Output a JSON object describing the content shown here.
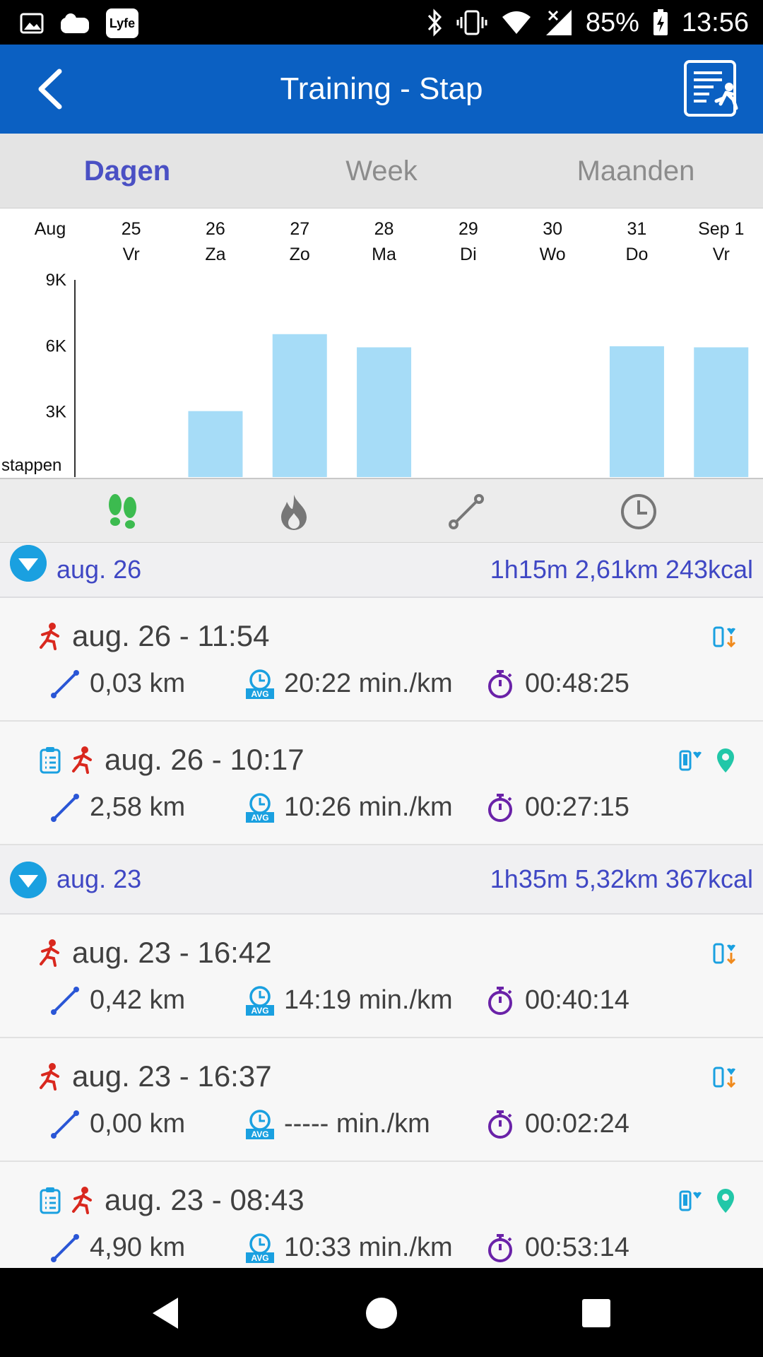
{
  "status_bar": {
    "battery": "85%",
    "time": "13:56",
    "app_badge": "Lyfe"
  },
  "app_bar": {
    "title": "Training - Stap",
    "back_icon": "chevron-left-icon",
    "menu_icon": "report-runner-icon"
  },
  "tabs": [
    {
      "label": "Dagen",
      "active": true
    },
    {
      "label": "Week",
      "active": false
    },
    {
      "label": "Maanden",
      "active": false
    }
  ],
  "chart_data": {
    "type": "bar",
    "month_label": "Aug",
    "categories": [
      "25",
      "26",
      "27",
      "28",
      "29",
      "30",
      "31",
      "Sep 1"
    ],
    "weekday_labels": [
      "Vr",
      "Za",
      "Zo",
      "Ma",
      "Di",
      "Wo",
      "Do",
      "Vr"
    ],
    "values": [
      0,
      3000,
      6500,
      5900,
      0,
      0,
      5950,
      5900
    ],
    "ylabel": "stappen",
    "y_ticks": [
      "3K",
      "6K",
      "9K"
    ],
    "ylim": [
      0,
      9000
    ],
    "bar_color": "#a6dcf7",
    "grid": false
  },
  "metric_switch": [
    {
      "icon": "footsteps-icon",
      "active": true
    },
    {
      "icon": "flame-icon",
      "active": false
    },
    {
      "icon": "route-icon",
      "active": false
    },
    {
      "icon": "clock-icon",
      "active": false
    }
  ],
  "days": [
    {
      "date": "aug. 26",
      "summary": "1h15m 2,61km 243kcal",
      "activities": [
        {
          "title": "aug. 26 - 11:54",
          "distance": "0,03 km",
          "pace": "20:22 min./km",
          "duration": "00:48:25",
          "has_plan": false,
          "source": "device",
          "has_gps": false
        },
        {
          "title": "aug. 26 - 10:17",
          "distance": "2,58 km",
          "pace": "10:26 min./km",
          "duration": "00:27:15",
          "has_plan": true,
          "source": "phone",
          "has_gps": true
        }
      ]
    },
    {
      "date": "aug. 23",
      "summary": "1h35m 5,32km 367kcal",
      "activities": [
        {
          "title": "aug. 23 - 16:42",
          "distance": "0,42 km",
          "pace": "14:19 min./km",
          "duration": "00:40:14",
          "has_plan": false,
          "source": "device",
          "has_gps": false
        },
        {
          "title": "aug. 23 - 16:37",
          "distance": "0,00 km",
          "pace": "----- min./km",
          "duration": "00:02:24",
          "has_plan": false,
          "source": "device",
          "has_gps": false
        },
        {
          "title": "aug. 23 - 08:43",
          "distance": "4,90 km",
          "pace": "10:33 min./km",
          "duration": "00:53:14",
          "has_plan": true,
          "source": "phone",
          "has_gps": true
        }
      ]
    }
  ],
  "labels": {
    "avg_badge": "AVG"
  },
  "colors": {
    "app_bar": "#0b60c2",
    "accent": "#3f47c4",
    "runner": "#d9281e",
    "route": "#2a56d6",
    "pace": "#1aa0e0",
    "timer": "#6a22a8",
    "gps": "#22c7a8"
  }
}
